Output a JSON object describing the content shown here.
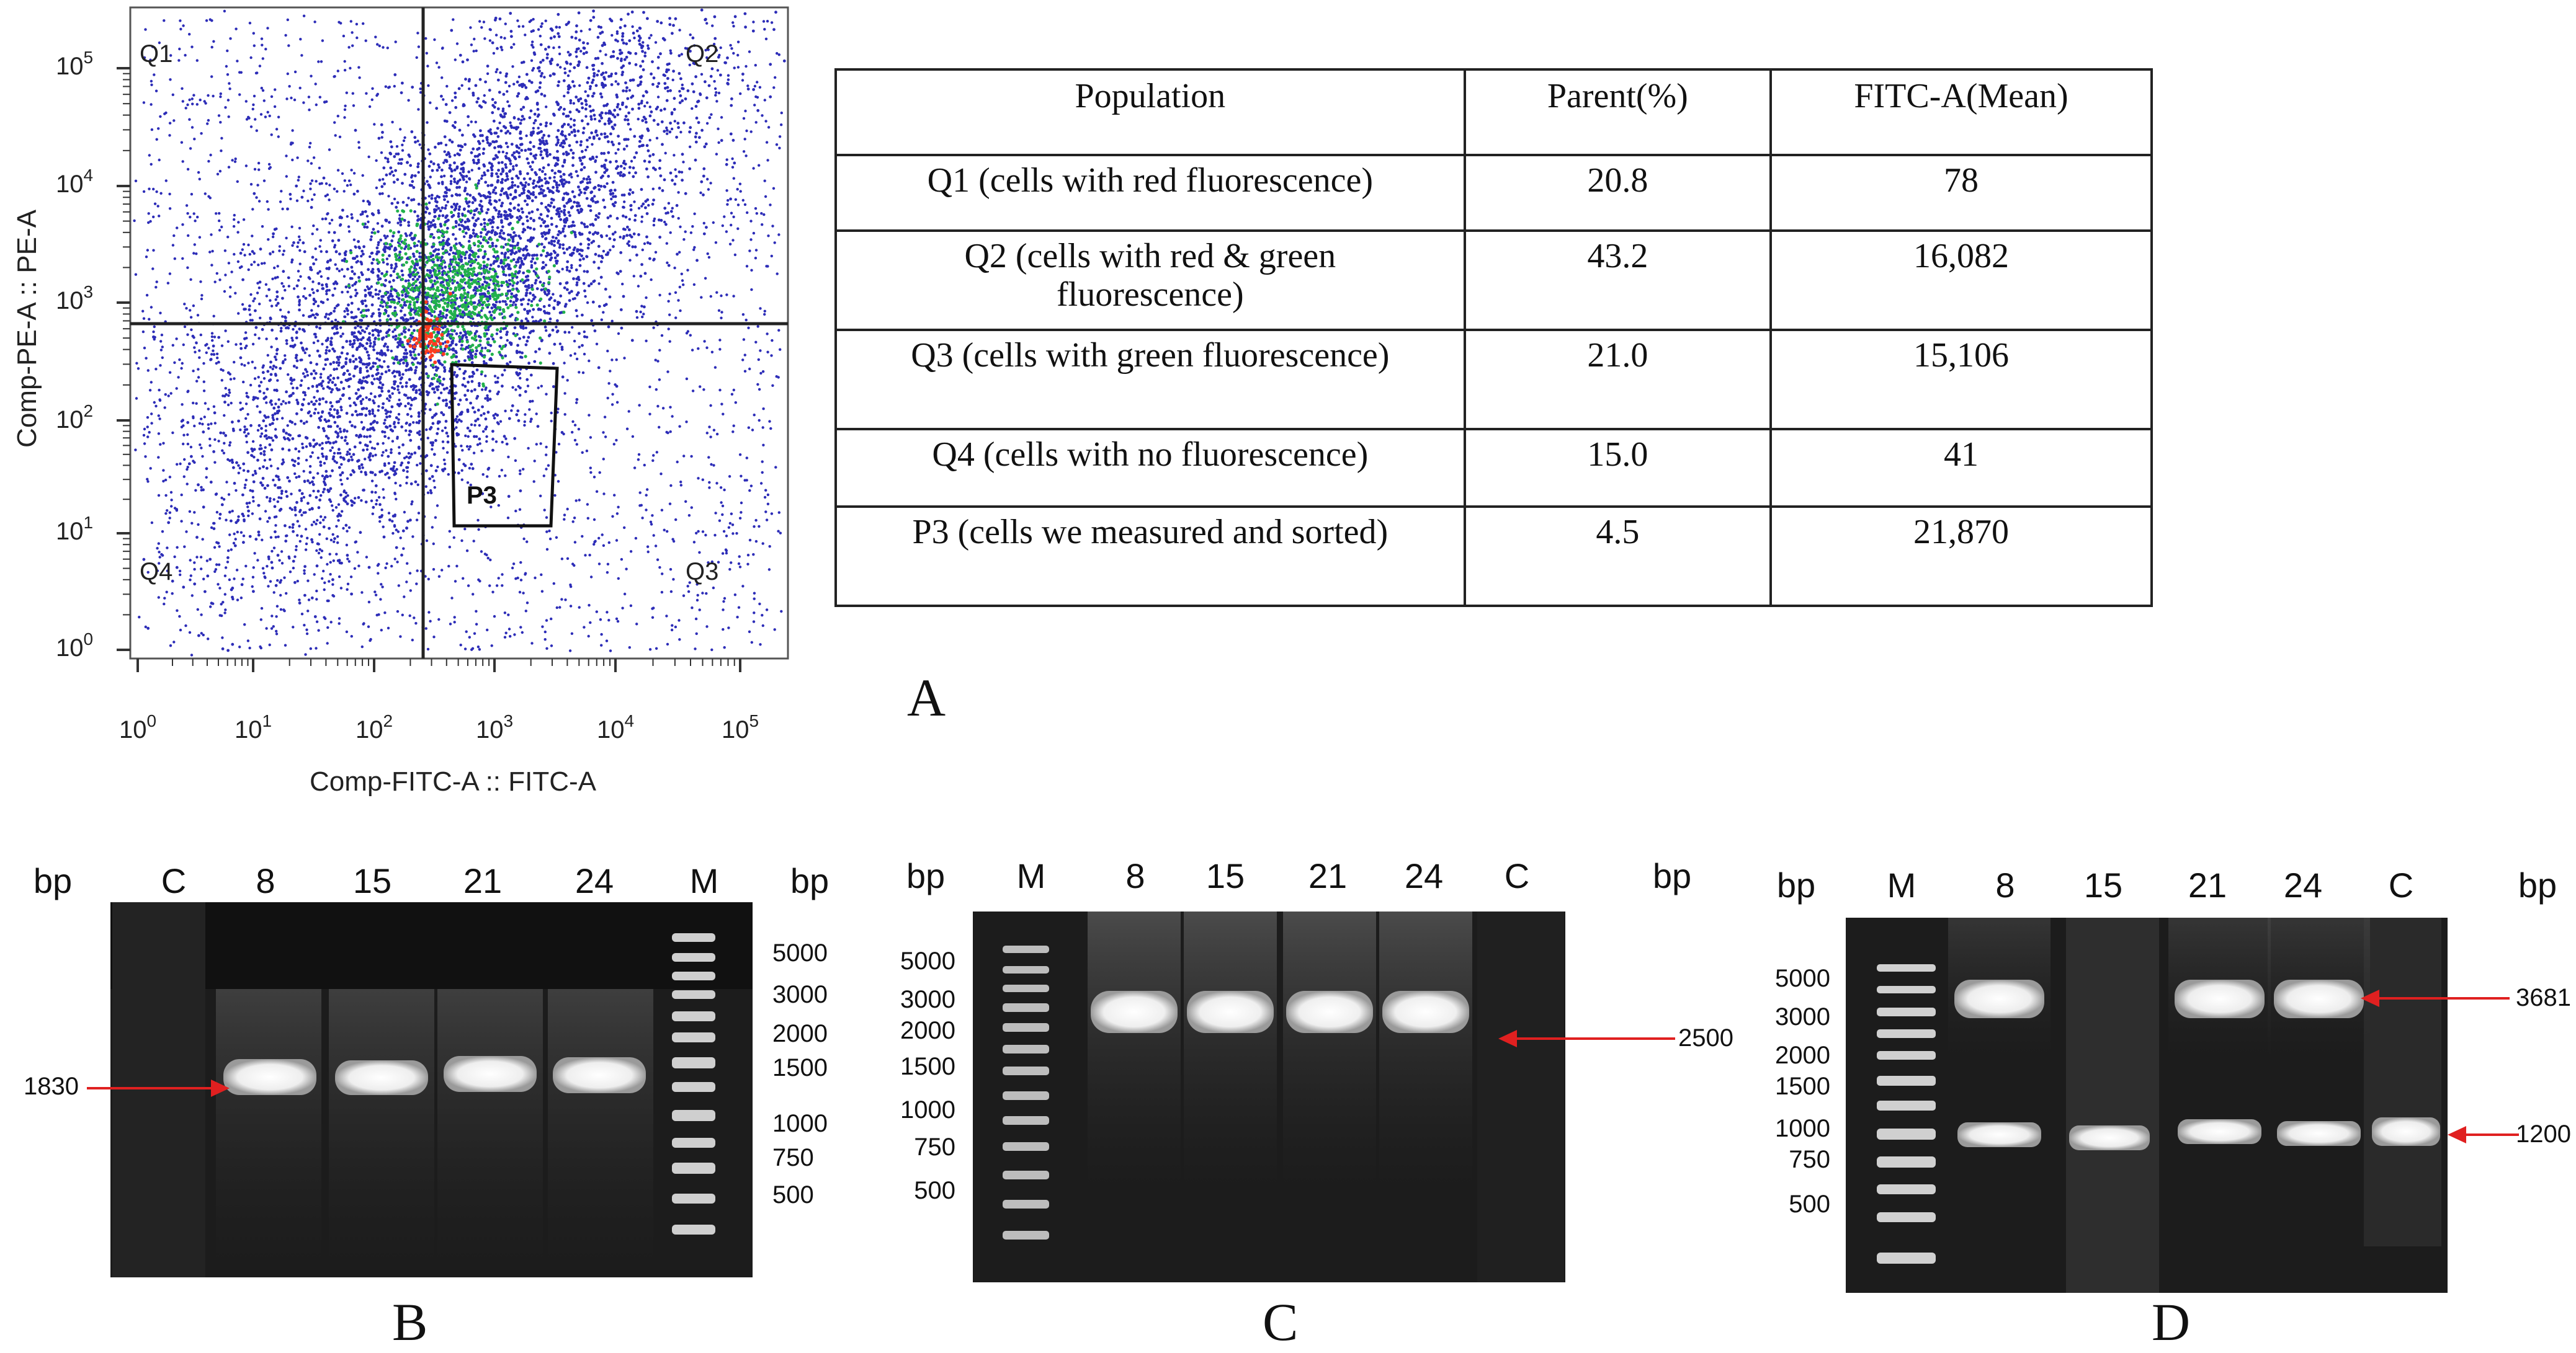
{
  "flow_plot": {
    "x_axis_label": "Comp-FITC-A :: FITC-A",
    "y_axis_label": "Comp-PE-A :: PE-A",
    "x_ticks": [
      {
        "base": "10",
        "exp": "0"
      },
      {
        "base": "10",
        "exp": "1"
      },
      {
        "base": "10",
        "exp": "2"
      },
      {
        "base": "10",
        "exp": "3"
      },
      {
        "base": "10",
        "exp": "4"
      },
      {
        "base": "10",
        "exp": "5"
      }
    ],
    "y_ticks": [
      {
        "base": "10",
        "exp": "0"
      },
      {
        "base": "10",
        "exp": "1"
      },
      {
        "base": "10",
        "exp": "2"
      },
      {
        "base": "10",
        "exp": "3"
      },
      {
        "base": "10",
        "exp": "4"
      },
      {
        "base": "10",
        "exp": "5"
      }
    ],
    "quadrants": {
      "q1": "Q1",
      "q2": "Q2",
      "q3": "Q3",
      "q4": "Q4"
    },
    "gate_label": "P3",
    "dot_color": "#2d2db8",
    "dense_color": "#22b14c",
    "hot_color": "#ff3b1f"
  },
  "table": {
    "headers": [
      "Population",
      "Parent(%)",
      "FITC-A(Mean)"
    ],
    "rows": [
      {
        "population": "Q1 (cells with red fluorescence)",
        "parent": "20.8",
        "mean": "78"
      },
      {
        "population": "Q2 (cells with red & green fluorescence)",
        "parent": "43.2",
        "mean": "16,082"
      },
      {
        "population": "Q3 (cells with green fluorescence)",
        "parent": "21.0",
        "mean": "15,106"
      },
      {
        "population": "Q4 (cells with no fluorescence)",
        "parent": "15.0",
        "mean": "41"
      },
      {
        "population": "P3 (cells we measured and sorted)",
        "parent": "4.5",
        "mean": "21,870"
      }
    ]
  },
  "panels": {
    "a": "A",
    "b": "B",
    "c": "C",
    "d": "D"
  },
  "gels": {
    "b": {
      "unit_left": "bp",
      "unit_right": "bp",
      "lanes": [
        "C",
        "8",
        "15",
        "21",
        "24",
        "M"
      ],
      "marker_sizes": [
        "5000",
        "3000",
        "2000",
        "1500",
        "1000",
        "750",
        "500"
      ],
      "arrow_label": "1830"
    },
    "c": {
      "unit_left": "bp",
      "unit_right": "bp",
      "lanes": [
        "M",
        "8",
        "15",
        "21",
        "24",
        "C"
      ],
      "marker_sizes": [
        "5000",
        "3000",
        "2000",
        "1500",
        "1000",
        "750",
        "500"
      ],
      "arrow_label": "2500"
    },
    "d": {
      "unit_left": "bp",
      "unit_right": "bp",
      "lanes": [
        "M",
        "8",
        "15",
        "21",
        "24",
        "C"
      ],
      "marker_sizes": [
        "5000",
        "3000",
        "2000",
        "1500",
        "1000",
        "750",
        "500"
      ],
      "arrow_labels": [
        "3681",
        "1200"
      ]
    }
  },
  "colors": {
    "arrow": "#e02020",
    "gel_bg": "#1c1c1c",
    "band": "#f4f4f4",
    "text": "#111111"
  }
}
